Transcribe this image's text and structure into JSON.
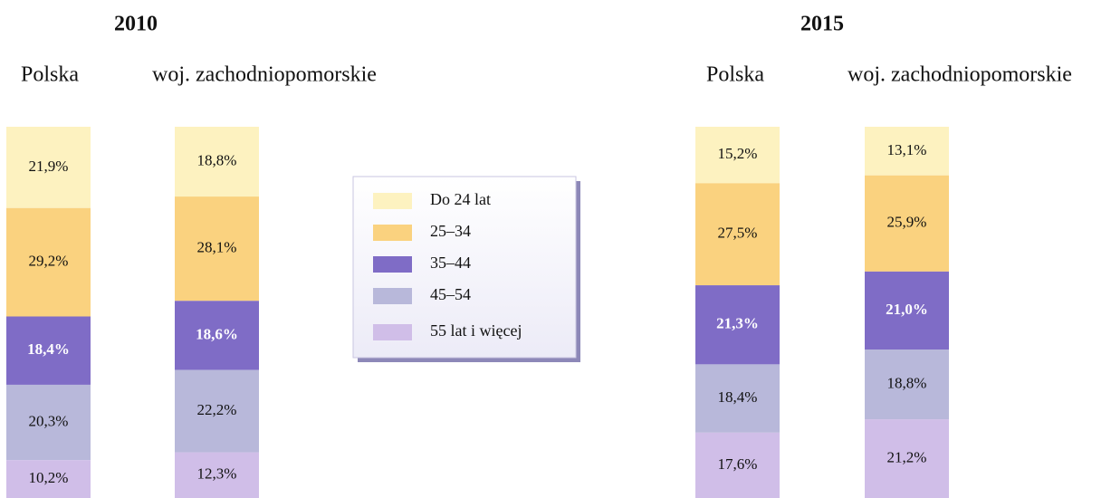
{
  "chart_data": {
    "type": "bar",
    "stacked": true,
    "groups": [
      "2010",
      "2015"
    ],
    "categories": [
      "Polska",
      "woj. zachodniopomorskie",
      "Polska",
      "woj. zachodniopomorskie"
    ],
    "ylim": [
      0,
      100
    ],
    "series": [
      {
        "name": "Do 24 lat",
        "color": "#fdf2c0",
        "values": [
          21.9,
          18.8,
          15.2,
          13.1
        ],
        "value_labels": [
          "21,9%",
          "18,8%",
          "15,2%",
          "13,1%"
        ]
      },
      {
        "name": "25–34",
        "color": "#fad27f",
        "values": [
          29.2,
          28.1,
          27.5,
          25.9
        ],
        "value_labels": [
          "29,2%",
          "28,1%",
          "27,5%",
          "25,9%"
        ]
      },
      {
        "name": "35–44",
        "color": "#7f6cc6",
        "values": [
          18.4,
          18.6,
          21.3,
          21.0
        ],
        "value_labels": [
          "18,4%",
          "18,6%",
          "21,3%",
          "21,0%"
        ]
      },
      {
        "name": "45–54",
        "color": "#b8b8da",
        "values": [
          20.3,
          22.2,
          18.4,
          18.8
        ],
        "value_labels": [
          "20,3%",
          "22,2%",
          "18,4%",
          "18,8%"
        ]
      },
      {
        "name": "55 lat i więcej",
        "color": "#d0bee8",
        "values": [
          10.2,
          12.3,
          17.6,
          21.2
        ],
        "value_labels": [
          "10,2%",
          "12,3%",
          "17,6%",
          "21,2%"
        ]
      }
    ]
  }
}
